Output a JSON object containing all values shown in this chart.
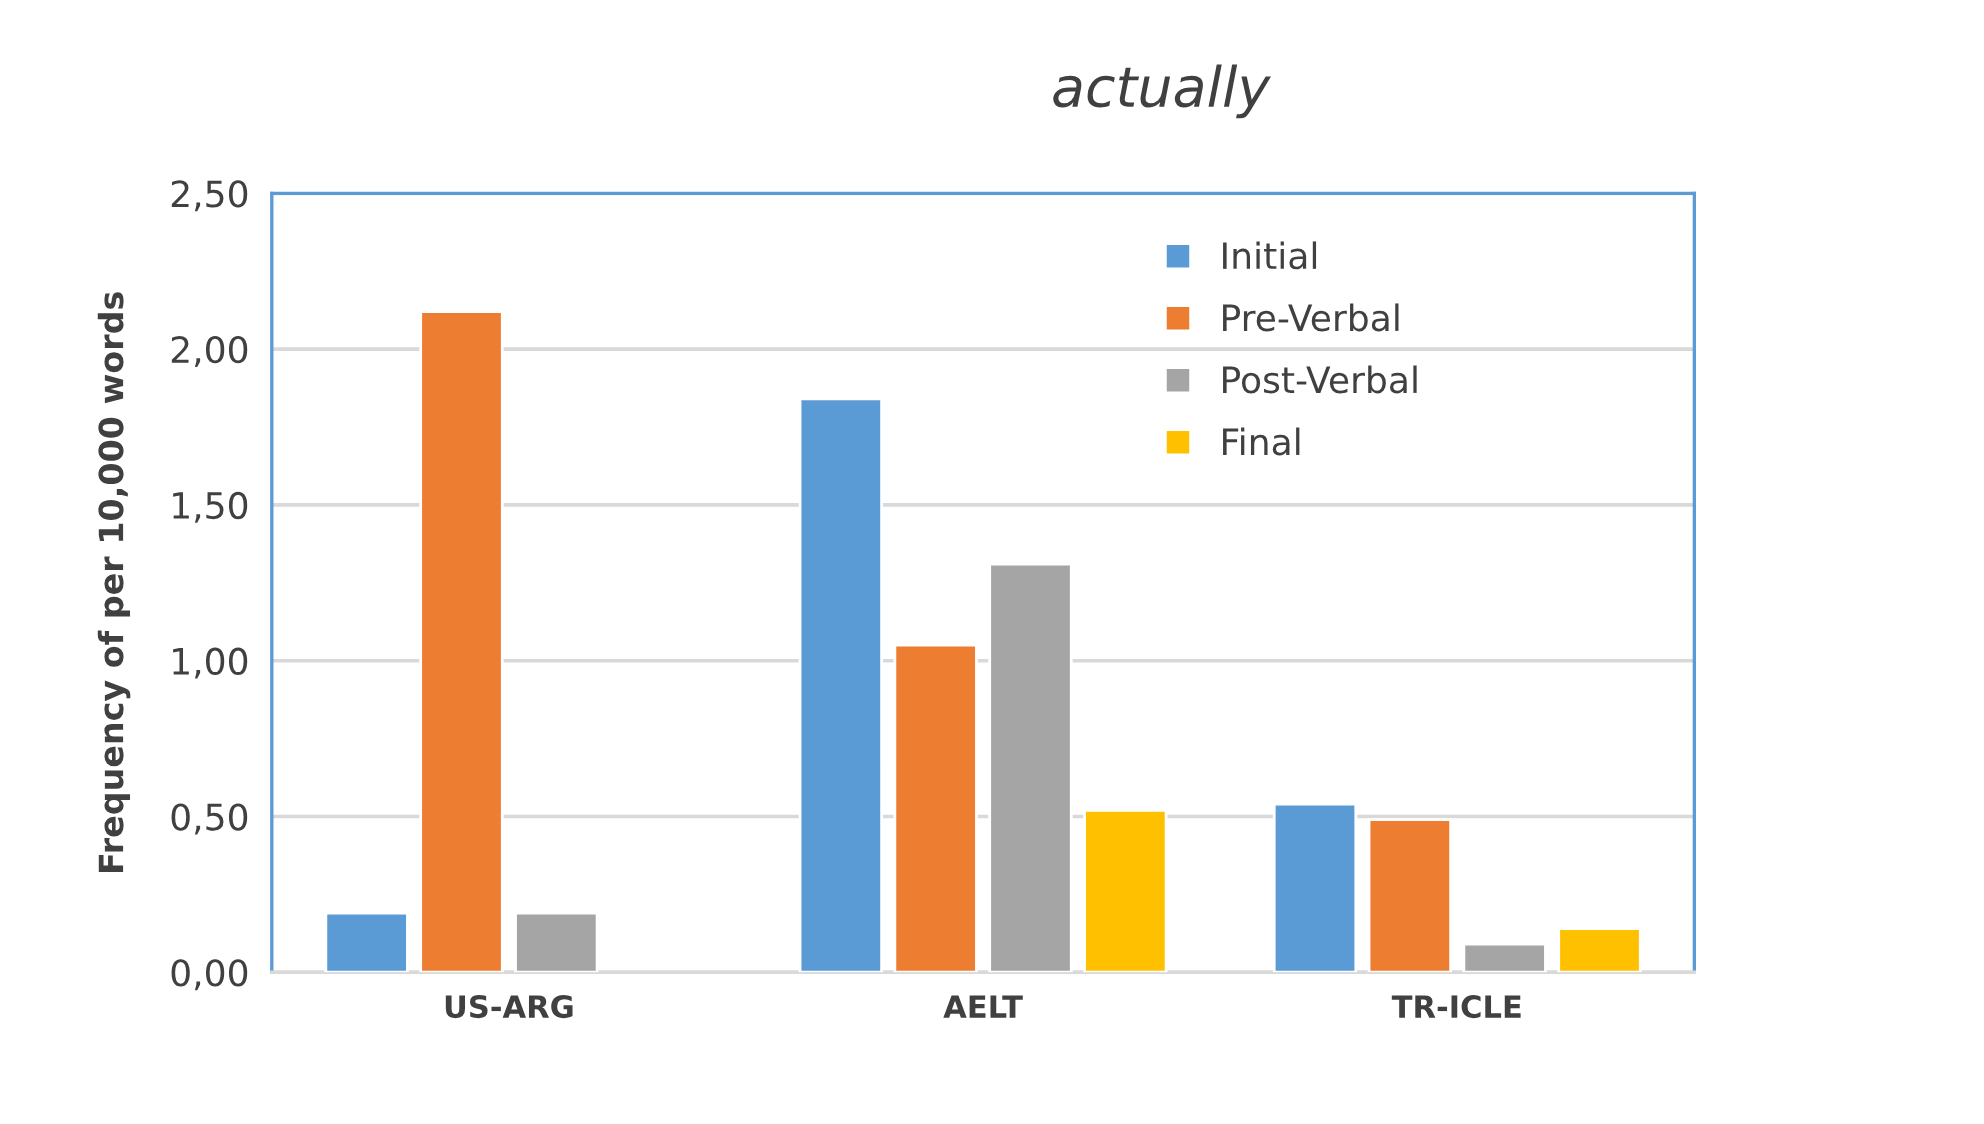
{
  "chart_data": {
    "type": "bar",
    "title": "actually",
    "ylabel": "Frequency of per 10,000 words",
    "categories": [
      "US-ARG",
      "AELT",
      "TR-ICLE"
    ],
    "series": [
      {
        "name": "Initial",
        "color": "#5b9bd5",
        "values": [
          0.19,
          1.84,
          0.54
        ]
      },
      {
        "name": "Pre-Verbal",
        "color": "#ed7d31",
        "values": [
          2.12,
          1.05,
          0.49
        ]
      },
      {
        "name": "Post-Verbal",
        "color": "#a5a5a5",
        "values": [
          0.19,
          1.31,
          0.09
        ]
      },
      {
        "name": "Final",
        "color": "#ffc000",
        "values": [
          null,
          0.52,
          0.14
        ]
      }
    ],
    "ylim": [
      0,
      2.5
    ],
    "yticks": [
      {
        "value": 0,
        "label": "0,00"
      },
      {
        "value": 0.5,
        "label": "0,50"
      },
      {
        "value": 1,
        "label": "1,00"
      },
      {
        "value": 1.5,
        "label": "1,50"
      },
      {
        "value": 2,
        "label": "2,00"
      },
      {
        "value": 2.5,
        "label": "2,50"
      }
    ],
    "grid": "y",
    "legend": "top right"
  }
}
